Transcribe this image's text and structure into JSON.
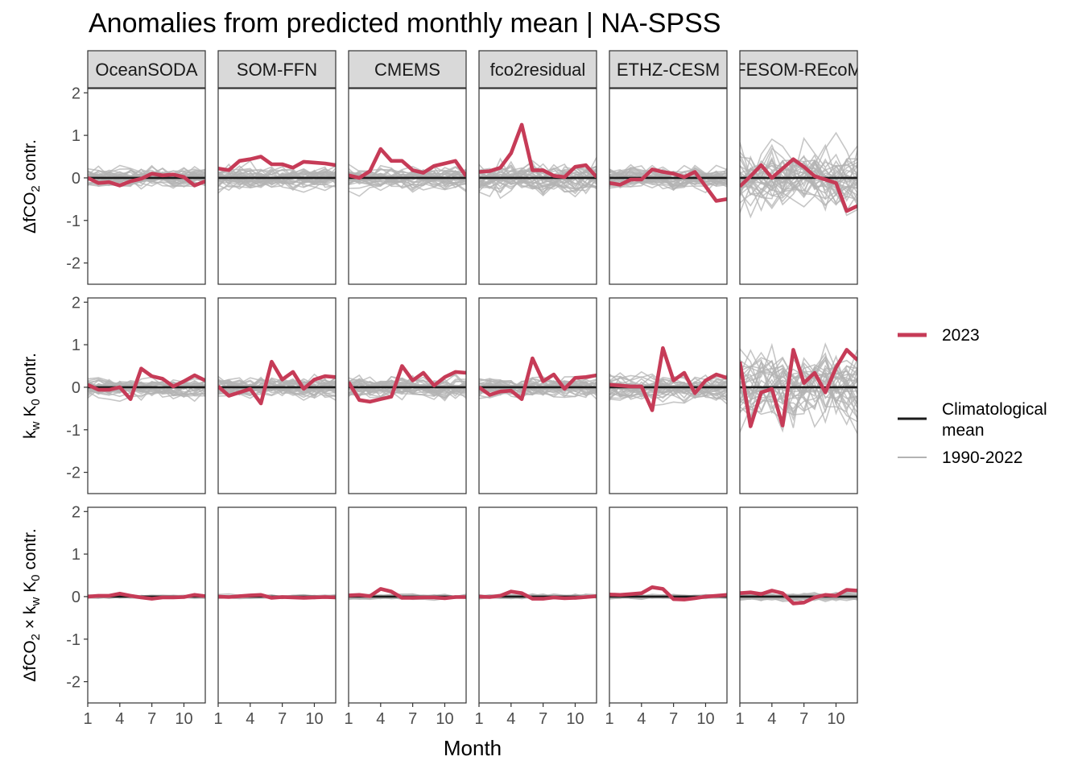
{
  "chart_data": {
    "type": "line",
    "title": "Anomalies from predicted monthly mean | NA-SPSS",
    "xlabel": "Month",
    "x_ticks": [
      1,
      4,
      7,
      10
    ],
    "y_ticks": [
      -2,
      -1,
      0,
      1,
      2
    ],
    "ylim": [
      -2.5,
      2.1
    ],
    "xlim": [
      1,
      12
    ],
    "grid": false,
    "legend_position": "right",
    "columns": [
      "OceanSODA",
      "SOM-FFN",
      "CMEMS",
      "fco2residual",
      "ETHZ-CESM",
      "FESOM-REcoM"
    ],
    "row_labels": [
      {
        "main": "ΔfCO",
        "sub": "2",
        "tail": " contr."
      },
      {
        "parts": [
          {
            "t": "k"
          },
          {
            "t": "w",
            "sub": true
          },
          {
            "t": " K"
          },
          {
            "t": "0",
            "sub": true
          },
          {
            "t": " contr."
          }
        ]
      },
      {
        "parts": [
          {
            "t": "ΔfCO"
          },
          {
            "t": "2",
            "sub": true
          },
          {
            "t": " × k"
          },
          {
            "t": "w",
            "sub": true
          },
          {
            "t": " K"
          },
          {
            "t": "0",
            "sub": true
          },
          {
            "t": " contr."
          }
        ]
      }
    ],
    "legend": {
      "highlight_label": "2023",
      "climatology_label_line1": "Climatological",
      "climatology_label_line2": "mean",
      "history_label": "1990-2022"
    },
    "colors": {
      "highlight": "#c63b57",
      "climatology": "#1a1a1a",
      "history": "#b3b3b3"
    },
    "history_spread": [
      [
        0.18,
        0.22,
        0.2,
        0.3,
        0.22,
        0.55
      ],
      [
        0.18,
        0.2,
        0.2,
        0.18,
        0.25,
        0.7
      ],
      [
        0.03,
        0.03,
        0.04,
        0.04,
        0.04,
        0.07
      ]
    ],
    "series_2023": [
      [
        [
          0.0,
          -0.12,
          -0.1,
          -0.18,
          -0.08,
          -0.02,
          0.1,
          0.06,
          0.08,
          0.02,
          -0.18,
          -0.08
        ],
        [
          0.22,
          0.18,
          0.4,
          0.44,
          0.5,
          0.32,
          0.32,
          0.24,
          0.38,
          0.36,
          0.34,
          0.3
        ],
        [
          0.06,
          0.0,
          0.16,
          0.68,
          0.4,
          0.4,
          0.18,
          0.12,
          0.28,
          0.34,
          0.4,
          0.04
        ],
        [
          0.14,
          0.16,
          0.24,
          0.58,
          1.25,
          0.18,
          0.18,
          0.05,
          0.02,
          0.26,
          0.3,
          0.02
        ],
        [
          -0.12,
          -0.16,
          -0.04,
          -0.04,
          0.2,
          0.14,
          0.1,
          0.02,
          0.14,
          -0.2,
          -0.54,
          -0.5
        ],
        [
          -0.2,
          0.04,
          0.3,
          0.0,
          0.22,
          0.44,
          0.26,
          0.04,
          -0.04,
          -0.12,
          -0.78,
          -0.66
        ]
      ],
      [
        [
          0.06,
          -0.06,
          -0.06,
          0.0,
          -0.28,
          0.44,
          0.26,
          0.2,
          0.02,
          0.14,
          0.28,
          0.16
        ],
        [
          0.02,
          -0.2,
          -0.12,
          -0.04,
          -0.38,
          0.6,
          0.18,
          0.36,
          -0.04,
          0.18,
          0.26,
          0.24
        ],
        [
          0.12,
          -0.3,
          -0.34,
          -0.28,
          -0.22,
          0.5,
          0.16,
          0.34,
          0.04,
          0.24,
          0.36,
          0.34
        ],
        [
          0.0,
          -0.18,
          -0.1,
          -0.08,
          -0.28,
          0.68,
          0.14,
          0.3,
          -0.04,
          0.22,
          0.24,
          0.28
        ],
        [
          0.06,
          0.04,
          0.02,
          0.02,
          -0.54,
          0.92,
          0.16,
          0.34,
          -0.14,
          0.16,
          0.3,
          0.22
        ],
        [
          0.6,
          -0.92,
          -0.12,
          -0.04,
          -0.9,
          0.88,
          0.1,
          0.34,
          -0.12,
          0.46,
          0.88,
          0.64
        ]
      ],
      [
        [
          0.0,
          0.02,
          0.02,
          0.07,
          0.02,
          -0.02,
          -0.05,
          -0.02,
          -0.02,
          -0.01,
          0.04,
          0.01
        ],
        [
          0.0,
          -0.01,
          0.01,
          0.03,
          0.04,
          -0.03,
          -0.01,
          -0.02,
          -0.03,
          -0.02,
          -0.01,
          -0.02
        ],
        [
          0.03,
          0.04,
          0.01,
          0.18,
          0.12,
          -0.03,
          -0.03,
          -0.02,
          -0.02,
          -0.04,
          -0.01,
          -0.01
        ],
        [
          0.0,
          -0.01,
          0.02,
          0.12,
          0.08,
          -0.05,
          -0.05,
          -0.02,
          -0.04,
          -0.03,
          -0.01,
          0.01
        ],
        [
          0.05,
          0.04,
          0.06,
          0.08,
          0.22,
          0.18,
          -0.06,
          -0.07,
          -0.04,
          0.0,
          0.02,
          0.04
        ],
        [
          0.08,
          0.1,
          0.06,
          0.14,
          0.08,
          -0.16,
          -0.14,
          -0.02,
          0.04,
          0.02,
          0.16,
          0.14
        ]
      ]
    ]
  }
}
